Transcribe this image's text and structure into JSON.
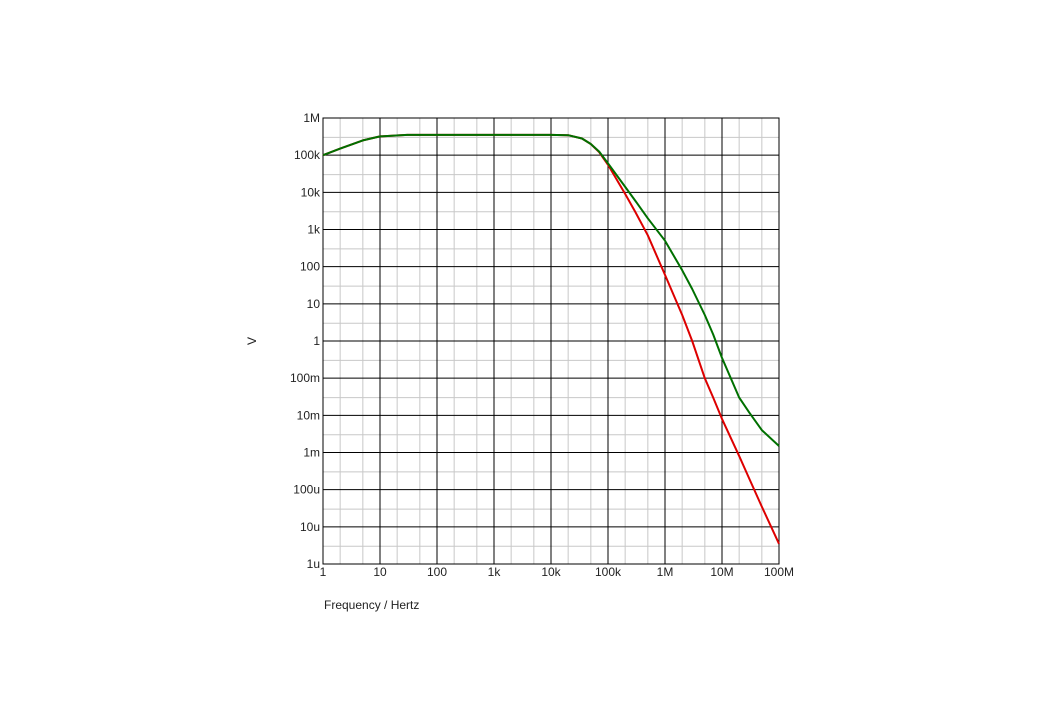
{
  "chart_data": {
    "type": "line",
    "xlabel": "Frequency / Hertz",
    "ylabel": "V",
    "x_scale": "log",
    "y_scale": "log",
    "xlim": [
      1,
      100000000
    ],
    "ylim": [
      1e-06,
      1000000
    ],
    "grid": true,
    "x_ticks": [
      {
        "value": 1,
        "label": "1"
      },
      {
        "value": 10,
        "label": "10"
      },
      {
        "value": 100,
        "label": "100"
      },
      {
        "value": 1000,
        "label": "1k"
      },
      {
        "value": 10000,
        "label": "10k"
      },
      {
        "value": 100000,
        "label": "100k"
      },
      {
        "value": 1000000,
        "label": "1M"
      },
      {
        "value": 10000000,
        "label": "10M"
      },
      {
        "value": 100000000,
        "label": "100M"
      }
    ],
    "y_ticks": [
      {
        "value": 1000000,
        "label": "1M"
      },
      {
        "value": 100000,
        "label": "100k"
      },
      {
        "value": 10000,
        "label": "10k"
      },
      {
        "value": 1000,
        "label": "1k"
      },
      {
        "value": 100,
        "label": "100"
      },
      {
        "value": 10,
        "label": "10"
      },
      {
        "value": 1,
        "label": "1"
      },
      {
        "value": 0.1,
        "label": "100m"
      },
      {
        "value": 0.01,
        "label": "10m"
      },
      {
        "value": 0.001,
        "label": "1m"
      },
      {
        "value": 0.0001,
        "label": "100u"
      },
      {
        "value": 1e-05,
        "label": "10u"
      },
      {
        "value": 1e-06,
        "label": "1u"
      }
    ],
    "series": [
      {
        "color": "#dd0000",
        "points": [
          [
            1,
            100000
          ],
          [
            2,
            150000
          ],
          [
            5,
            250000
          ],
          [
            10,
            320000
          ],
          [
            30,
            350000
          ],
          [
            100,
            350000
          ],
          [
            1000,
            350000
          ],
          [
            10000,
            350000
          ],
          [
            20000,
            345000
          ],
          [
            35000,
            280000
          ],
          [
            50000,
            200000
          ],
          [
            70000,
            120000
          ],
          [
            100000,
            55000
          ],
          [
            200000,
            9000
          ],
          [
            300000,
            3000
          ],
          [
            500000,
            700
          ],
          [
            1000000,
            60
          ],
          [
            2000000,
            5
          ],
          [
            3000000,
            1
          ],
          [
            5000000,
            0.1
          ],
          [
            7000000,
            0.03
          ],
          [
            10000000,
            0.008
          ],
          [
            20000000,
            0.0008
          ],
          [
            30000000,
            0.0002
          ],
          [
            50000000,
            3.5e-05
          ],
          [
            100000000,
            3.5e-06
          ]
        ]
      },
      {
        "color": "#007000",
        "points": [
          [
            1,
            100000
          ],
          [
            2,
            150000
          ],
          [
            5,
            250000
          ],
          [
            10,
            320000
          ],
          [
            30,
            350000
          ],
          [
            100,
            350000
          ],
          [
            1000,
            350000
          ],
          [
            10000,
            350000
          ],
          [
            20000,
            345000
          ],
          [
            35000,
            280000
          ],
          [
            50000,
            200000
          ],
          [
            70000,
            125000
          ],
          [
            100000,
            60000
          ],
          [
            200000,
            14000
          ],
          [
            300000,
            6000
          ],
          [
            500000,
            2000
          ],
          [
            1000000,
            500
          ],
          [
            2000000,
            80
          ],
          [
            3000000,
            25
          ],
          [
            5000000,
            5
          ],
          [
            7000000,
            1.5
          ],
          [
            10000000,
            0.35
          ],
          [
            20000000,
            0.03
          ],
          [
            30000000,
            0.012
          ],
          [
            50000000,
            0.004
          ],
          [
            100000000,
            0.0015
          ]
        ]
      }
    ]
  }
}
